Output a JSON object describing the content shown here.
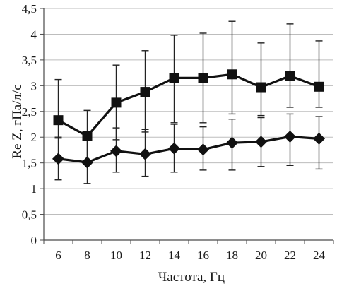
{
  "chart_data": {
    "type": "line",
    "title": "",
    "xlabel": "Частота, Гц",
    "ylabel": "Re Z, гПа/л/с",
    "categories": [
      "6",
      "8",
      "10",
      "12",
      "14",
      "16",
      "18",
      "20",
      "22",
      "24"
    ],
    "ylim": [
      0,
      4.5
    ],
    "yticks": [
      "0",
      "0,5",
      "1",
      "1,5",
      "2",
      "2,5",
      "3",
      "3,5",
      "4",
      "4,5"
    ],
    "grid": true,
    "legend": "none",
    "series": [
      {
        "marker": "square",
        "color": "#111111",
        "values": [
          2.33,
          2.02,
          2.67,
          2.88,
          3.15,
          3.15,
          3.22,
          2.97,
          3.19,
          2.98
        ],
        "err_upper": [
          3.12,
          2.52,
          3.4,
          3.68,
          3.98,
          4.02,
          4.25,
          3.83,
          4.2,
          3.87
        ],
        "err_lower": [
          1.98,
          1.55,
          1.95,
          2.1,
          2.28,
          2.28,
          2.45,
          2.42,
          2.58,
          2.58
        ]
      },
      {
        "marker": "diamond",
        "color": "#111111",
        "values": [
          1.58,
          1.51,
          1.73,
          1.67,
          1.78,
          1.76,
          1.89,
          1.91,
          2.01,
          1.97
        ],
        "err_upper": [
          2.0,
          1.95,
          2.18,
          2.15,
          2.25,
          2.2,
          2.35,
          2.38,
          2.45,
          2.4
        ],
        "err_lower": [
          1.17,
          1.1,
          1.32,
          1.24,
          1.32,
          1.36,
          1.36,
          1.43,
          1.45,
          1.38
        ]
      }
    ]
  }
}
